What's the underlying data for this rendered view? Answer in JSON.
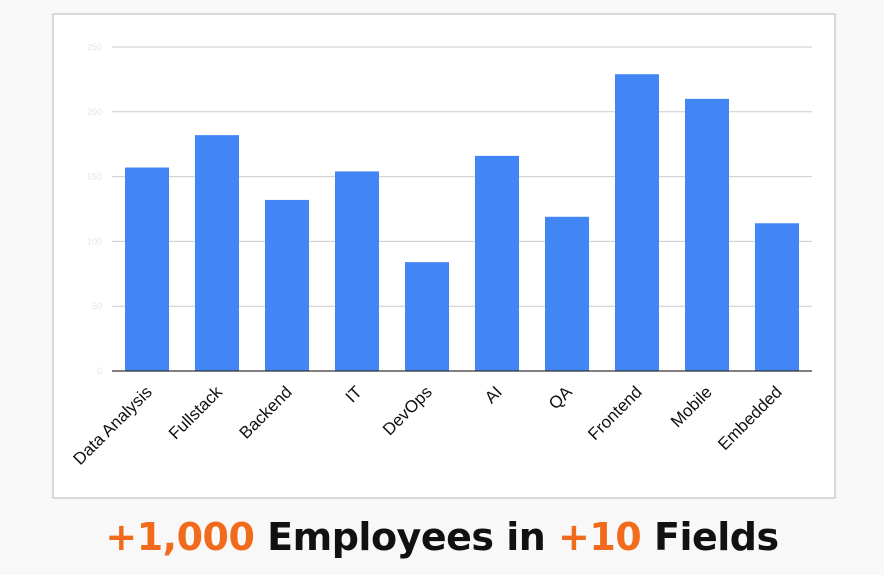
{
  "chart_data": {
    "type": "bar",
    "categories": [
      "Data Analysis",
      "Fullstack",
      "Backend",
      "IT",
      "DevOps",
      "AI",
      "QA",
      "Frontend",
      "Mobile",
      "Embedded"
    ],
    "values": [
      157,
      182,
      132,
      154,
      84,
      166,
      119,
      229,
      210,
      114
    ],
    "ylim": [
      0,
      250
    ],
    "yticks": [
      0,
      50,
      100,
      150,
      200,
      250
    ],
    "grid": true,
    "bar_color": "#4285f4",
    "gridline_color": "#cccccc"
  },
  "caption": {
    "count": "+1,000",
    "text_a": " Employees in ",
    "fields": "+10",
    "text_b": " Fields",
    "accent_color": "#f26b1d"
  }
}
